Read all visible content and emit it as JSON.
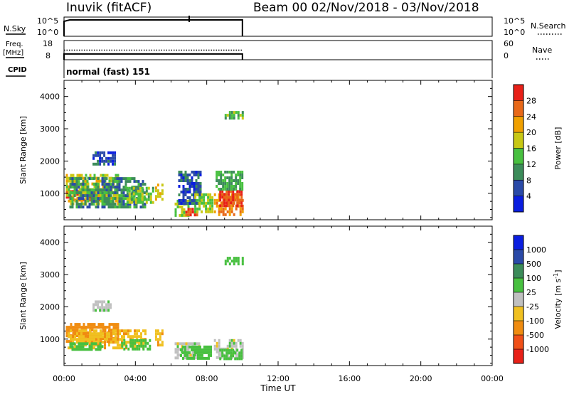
{
  "header": {
    "station": "Inuvik (fitACF)",
    "beam_and_dates": "Beam 00  02/Nov/2018 - 03/Nov/2018"
  },
  "status_panels": {
    "nsky": {
      "label": "N.Sky",
      "ticks": [
        "10^5",
        "10^0"
      ],
      "right_ticks": [
        "10^5",
        "10^0"
      ],
      "right_label": "N.Search"
    },
    "freq": {
      "label_line1": "Freq.",
      "label_line2": "[MHz]",
      "ticks": [
        "18",
        "8"
      ],
      "right_ticks": [
        "60",
        "0"
      ],
      "right_label": "Nave"
    },
    "cpid": {
      "label": "CPID",
      "value": "normal (fast) 151"
    }
  },
  "colors": {
    "power": [
      "#0a1ee0",
      "#2a4aa8",
      "#3c8c5a",
      "#48c040",
      "#c8c814",
      "#f0a000",
      "#e86818",
      "#e82018"
    ],
    "velocity": [
      "#e82018",
      "#f05018",
      "#f08c10",
      "#f0c020",
      "#c0c0c0",
      "#48c040",
      "#3c8c5a",
      "#2a4aa8",
      "#0a1ee0"
    ]
  },
  "chart_data": [
    {
      "type": "heatmap",
      "title": "",
      "xlabel": "",
      "ylabel": "Slant Range [km]",
      "colorbar_label": "Power [dB]",
      "colorbar_ticks": [
        "28",
        "24",
        "20",
        "16",
        "12",
        "8",
        "4"
      ],
      "x_ticks": [
        "00:00",
        "04:00",
        "08:00",
        "12:00",
        "16:00",
        "20:00",
        "00:00"
      ],
      "y_ticks": [
        "4000",
        "3000",
        "2000",
        "1000"
      ],
      "xlim": [
        0,
        24
      ],
      "ylim": [
        180,
        4500
      ],
      "echo_regions": [
        {
          "t0": 0.1,
          "t1": 2.4,
          "r0": 800,
          "r1": 1100,
          "value": 28
        },
        {
          "t0": 0.1,
          "t1": 3.0,
          "r0": 700,
          "r1": 1600,
          "value": 18
        },
        {
          "t0": 0.3,
          "t1": 4.6,
          "r0": 600,
          "r1": 1500,
          "value": 10
        },
        {
          "t0": 1.6,
          "t1": 2.8,
          "r0": 1900,
          "r1": 2300,
          "value": 6
        },
        {
          "t0": 3.5,
          "t1": 5.0,
          "r0": 700,
          "r1": 1200,
          "value": 14
        },
        {
          "t0": 5.1,
          "t1": 5.5,
          "r0": 800,
          "r1": 1300,
          "value": 20
        },
        {
          "t0": 6.2,
          "t1": 7.0,
          "r0": 350,
          "r1": 800,
          "value": 16
        },
        {
          "t0": 6.4,
          "t1": 7.6,
          "r0": 700,
          "r1": 1700,
          "value": 6
        },
        {
          "t0": 6.8,
          "t1": 7.4,
          "r0": 350,
          "r1": 550,
          "value": 28
        },
        {
          "t0": 7.3,
          "t1": 8.3,
          "r0": 400,
          "r1": 1000,
          "value": 16
        },
        {
          "t0": 8.4,
          "t1": 10.0,
          "r0": 300,
          "r1": 1000,
          "value": 24
        },
        {
          "t0": 8.7,
          "t1": 10.0,
          "r0": 600,
          "r1": 1100,
          "value": 28
        },
        {
          "t0": 8.5,
          "t1": 10.0,
          "r0": 1100,
          "r1": 1700,
          "value": 12
        },
        {
          "t0": 9.0,
          "t1": 10.0,
          "r0": 3300,
          "r1": 3550,
          "value": 14
        }
      ]
    },
    {
      "type": "heatmap",
      "title": "",
      "xlabel": "Time UT",
      "ylabel": "Slant Range [km]",
      "colorbar_label": "Velocity [m s^-1]",
      "colorbar_ticks": [
        "1000",
        "500",
        "100",
        "25",
        "-25",
        "-100",
        "-500",
        "-1000"
      ],
      "x_ticks": [
        "00:00",
        "04:00",
        "08:00",
        "12:00",
        "16:00",
        "20:00",
        "00:00"
      ],
      "y_ticks": [
        "4000",
        "3000",
        "2000",
        "1000"
      ],
      "xlim": [
        0,
        24
      ],
      "ylim": [
        180,
        4500
      ],
      "echo_regions": [
        {
          "t0": 0.1,
          "t1": 3.0,
          "r0": 900,
          "r1": 1500,
          "value": -150
        },
        {
          "t0": 0.2,
          "t1": 4.6,
          "r0": 700,
          "r1": 1300,
          "value": -80
        },
        {
          "t0": 0.3,
          "t1": 2.2,
          "r0": 700,
          "r1": 900,
          "value": 60
        },
        {
          "t0": 1.6,
          "t1": 2.6,
          "r0": 1900,
          "r1": 2200,
          "value": 0
        },
        {
          "t0": 3.2,
          "t1": 4.8,
          "r0": 700,
          "r1": 1000,
          "value": 60
        },
        {
          "t0": 5.1,
          "t1": 5.5,
          "r0": 800,
          "r1": 1300,
          "value": -80
        },
        {
          "t0": 6.2,
          "t1": 7.6,
          "r0": 400,
          "r1": 900,
          "value": 0
        },
        {
          "t0": 6.5,
          "t1": 8.2,
          "r0": 400,
          "r1": 800,
          "value": 60
        },
        {
          "t0": 8.4,
          "t1": 10.0,
          "r0": 400,
          "r1": 1000,
          "value": 0
        },
        {
          "t0": 8.7,
          "t1": 10.0,
          "r0": 400,
          "r1": 700,
          "value": 60
        },
        {
          "t0": 9.0,
          "t1": 10.0,
          "r0": 3300,
          "r1": 3550,
          "value": 60
        }
      ]
    }
  ],
  "status_series": {
    "nsky_level": 0.85,
    "freq_level_solid": 0.3,
    "freq_level_dotted": 0.5,
    "t_end": 10.0
  }
}
